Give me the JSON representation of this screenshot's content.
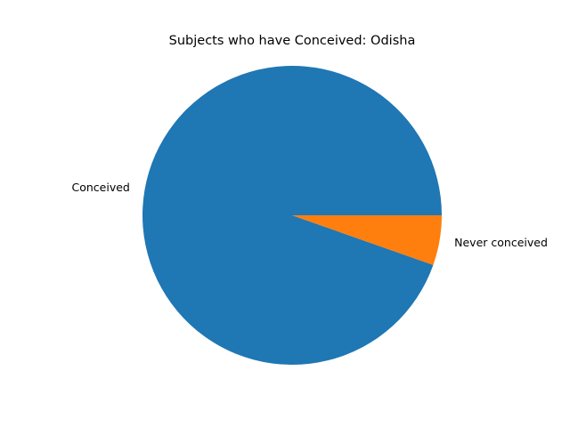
{
  "chart_data": {
    "type": "pie",
    "title": "Subjects who have Conceived: Odisha",
    "slices": [
      {
        "label": "Conceived",
        "value": 94.6,
        "color": "#1f77b4"
      },
      {
        "label": "Never conceived",
        "value": 5.4,
        "color": "#ff7f0e"
      }
    ],
    "start_angle_deg": 0,
    "direction": "counterclockwise",
    "legend": "none"
  }
}
